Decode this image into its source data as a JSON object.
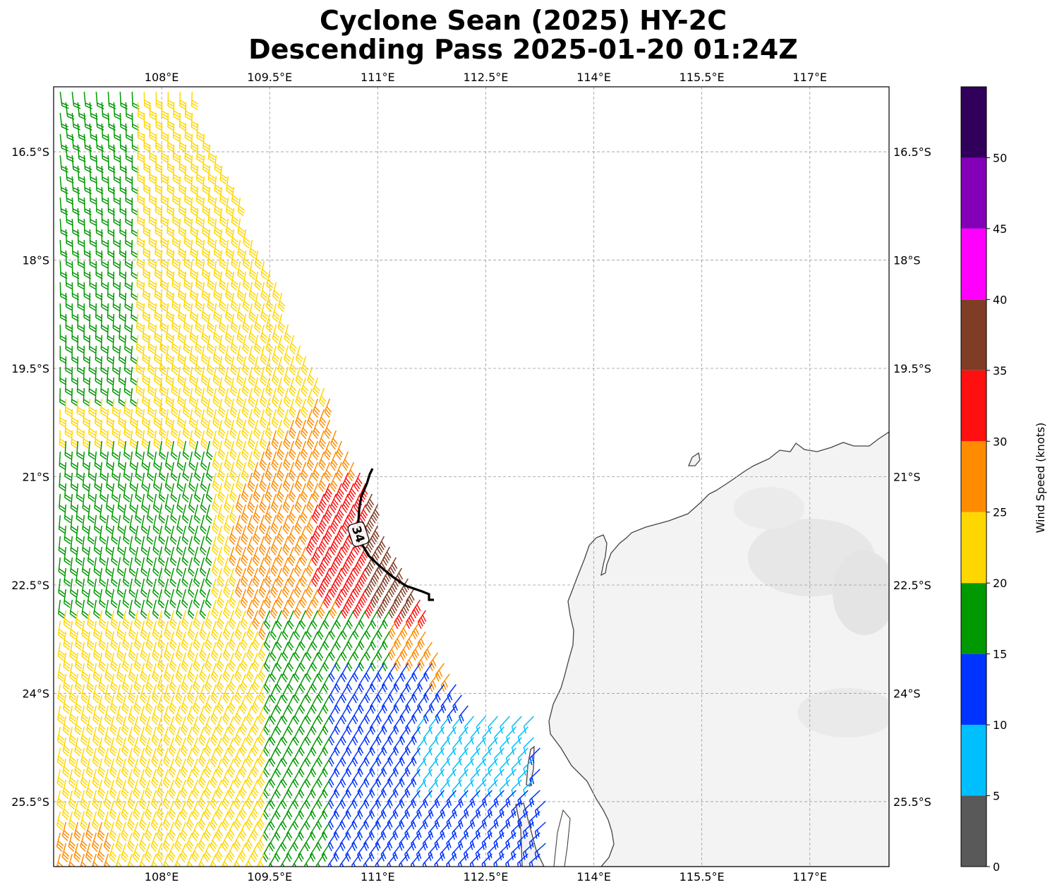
{
  "title": {
    "line1": "Cyclone Sean (2025) HY-2C",
    "line2": "Descending Pass 2025-01-20 01:24Z"
  },
  "map": {
    "lon_range": [
      106.5,
      118.1
    ],
    "lat_range": [
      -26.4,
      -15.6
    ],
    "lon_ticks": [
      108,
      109.5,
      111,
      112.5,
      114,
      115.5,
      117
    ],
    "lon_tick_labels": [
      "108°E",
      "109.5°E",
      "111°E",
      "112.5°E",
      "114°E",
      "115.5°E",
      "117°E"
    ],
    "lat_ticks": [
      -16.5,
      -18,
      -19.5,
      -21,
      -22.5,
      -24,
      -25.5
    ],
    "lat_tick_labels": [
      "16.5°S",
      "18°S",
      "19.5°S",
      "21°S",
      "22.5°S",
      "24°S",
      "25.5°S"
    ],
    "gridlines": true,
    "land_color": "#f2f2f2",
    "coast_color": "#444444"
  },
  "contour": {
    "label": "34",
    "color": "#000000"
  },
  "colorbar": {
    "label": "Wind Speed (knots)",
    "bounds": [
      0,
      5,
      10,
      15,
      20,
      25,
      30,
      35,
      40,
      45,
      50,
      55
    ],
    "tick_values": [
      0,
      5,
      10,
      15,
      20,
      25,
      30,
      35,
      40,
      45,
      50
    ],
    "tick_labels": [
      "0",
      "5",
      "10",
      "15",
      "20",
      "25",
      "30",
      "35",
      "40",
      "45",
      "50"
    ],
    "colors": [
      "#595959",
      "#00bfff",
      "#0033ff",
      "#009900",
      "#ffd700",
      "#ff8c00",
      "#ff1010",
      "#7f3d26",
      "#ff00ff",
      "#8400b8",
      "#30005a"
    ]
  }
}
